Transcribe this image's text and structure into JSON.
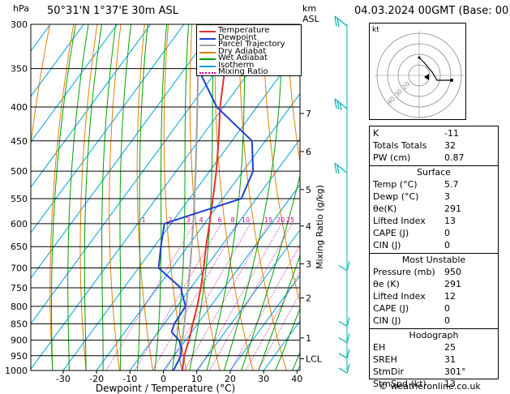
{
  "header": {
    "pressure_unit": "hPa",
    "location": "50°31'N  1°37'E  30m  ASL",
    "height_unit_km": "km",
    "height_unit_asl": "ASL",
    "datetime": "04.03.2024  00GMT  (Base: 00)",
    "footer": "© weatheronline.co.uk"
  },
  "colors": {
    "temperature": "#e03030",
    "dewpoint": "#2040d0",
    "parcel": "#a0a0a0",
    "dry_adiabat": "#e08000",
    "wet_adiabat": "#00a000",
    "isotherm": "#00a0e0",
    "mixing_ratio": "#d000a0",
    "wind": "#00b0b0"
  },
  "legend": [
    {
      "label": "Temperature",
      "key": "temperature",
      "dash": false
    },
    {
      "label": "Dewpoint",
      "key": "dewpoint",
      "dash": false
    },
    {
      "label": "Parcel Trajectory",
      "key": "parcel",
      "dash": false
    },
    {
      "label": "Dry Adiabat",
      "key": "dry_adiabat",
      "dash": false
    },
    {
      "label": "Wet Adiabat",
      "key": "wet_adiabat",
      "dash": false
    },
    {
      "label": "Isotherm",
      "key": "isotherm",
      "dash": false
    },
    {
      "label": "Mixing Ratio",
      "key": "mixing_ratio",
      "dash": true
    }
  ],
  "indices": {
    "general": [
      {
        "k": "K",
        "v": "-11"
      },
      {
        "k": "Totals Totals",
        "v": "32"
      },
      {
        "k": "PW (cm)",
        "v": "0.87"
      }
    ],
    "surface_title": "Surface",
    "surface": [
      {
        "k": "Temp (°C)",
        "v": "5.7"
      },
      {
        "k": "Dewp (°C)",
        "v": "3"
      },
      {
        "k": "θe(K)",
        "v": "291"
      },
      {
        "k": "Lifted Index",
        "v": "13"
      },
      {
        "k": "CAPE (J)",
        "v": "0"
      },
      {
        "k": "CIN (J)",
        "v": "0"
      }
    ],
    "unstable_title": "Most Unstable",
    "unstable": [
      {
        "k": "Pressure (mb)",
        "v": "950"
      },
      {
        "k": "θe (K)",
        "v": "291"
      },
      {
        "k": "Lifted Index",
        "v": "12"
      },
      {
        "k": "CAPE (J)",
        "v": "0"
      },
      {
        "k": "CIN (J)",
        "v": "0"
      }
    ],
    "hodograph_title": "Hodograph",
    "hodograph": [
      {
        "k": "EH",
        "v": "25"
      },
      {
        "k": "SREH",
        "v": "31"
      },
      {
        "k": "StmDir",
        "v": "301°"
      },
      {
        "k": "StmSpd (kt)",
        "v": "13"
      }
    ]
  },
  "hodograph_plot": {
    "unit": "kt",
    "ring_labels": [
      "20",
      "30",
      "40"
    ]
  },
  "chart_data": {
    "type": "line",
    "title": "",
    "xlabel": "Dewpoint / Temperature (°C)",
    "ylabel": "Mixing Ratio (g/kg)",
    "xlim": [
      -35,
      40
    ],
    "ylim": [
      1000,
      300
    ],
    "x_ticks": [
      "-30",
      "-20",
      "-10",
      "0",
      "10",
      "20",
      "30",
      "40"
    ],
    "pressure_levels": [
      "300",
      "350",
      "400",
      "450",
      "500",
      "550",
      "600",
      "650",
      "700",
      "750",
      "800",
      "850",
      "900",
      "950",
      "1000"
    ],
    "height_ticks": [
      {
        "p": 409,
        "label": "7"
      },
      {
        "p": 467,
        "label": "6"
      },
      {
        "p": 533,
        "label": "5"
      },
      {
        "p": 605,
        "label": "4"
      },
      {
        "p": 690,
        "label": "3"
      },
      {
        "p": 777,
        "label": "2"
      },
      {
        "p": 893,
        "label": "1"
      },
      {
        "p": 960,
        "label": "LCL"
      }
    ],
    "mixing_ratio_labels": [
      "1",
      "2",
      "3",
      "4",
      "6",
      "8",
      "10",
      "15",
      "20",
      "25"
    ],
    "series": [
      {
        "name": "Temperature",
        "pressure": [
          1000,
          950,
          900,
          850,
          800,
          750,
          700,
          650,
          600,
          550,
          500,
          450,
          400,
          350,
          300
        ],
        "values": [
          5.7,
          3.0,
          1.0,
          -1.5,
          -4.0,
          -7.0,
          -10.5,
          -14.5,
          -18.5,
          -23.0,
          -28.0,
          -34.0,
          -41.0,
          -48.0,
          -55.0
        ]
      },
      {
        "name": "Dewpoint",
        "pressure": [
          1000,
          950,
          925,
          900,
          875,
          850,
          800,
          750,
          700,
          650,
          600,
          550,
          500,
          450,
          400,
          350,
          300
        ],
        "values": [
          3.0,
          2.0,
          0.5,
          -2.0,
          -6.0,
          -7.0,
          -7.5,
          -13.0,
          -24.0,
          -28.0,
          -32.0,
          -14.5,
          -17.0,
          -24.0,
          -42.0,
          -56.0,
          -62.0
        ]
      },
      {
        "name": "Parcel Trajectory",
        "pressure": [
          1000,
          960,
          900,
          850,
          800,
          750,
          700,
          650,
          600,
          550,
          500,
          450,
          400,
          350,
          300
        ],
        "values": [
          5.7,
          2.2,
          -1.0,
          -4.0,
          -7.3,
          -10.8,
          -14.6,
          -18.8,
          -23.4,
          -28.5,
          -34.2,
          -40.6,
          -47.8,
          -56.0,
          -65.0
        ]
      }
    ],
    "wind_barbs_pressure": [
      300,
      400,
      500,
      700,
      850,
      900,
      950,
      1000
    ]
  }
}
